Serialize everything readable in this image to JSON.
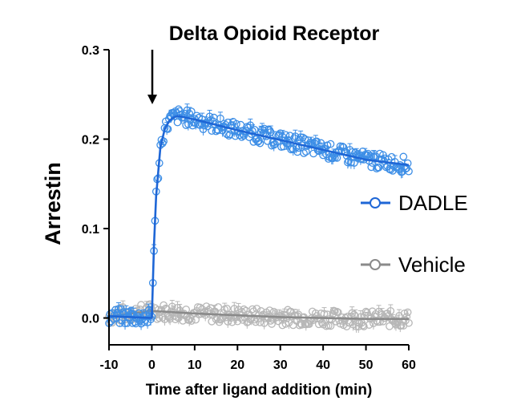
{
  "chart_data": {
    "type": "scatter",
    "title": "Delta Opioid Receptor",
    "xlabel": "Time after ligand addition (min)",
    "ylabel": "Arrestin",
    "xlim": [
      -10,
      60
    ],
    "ylim": [
      -0.03,
      0.3
    ],
    "x_ticks": [
      "-10",
      "0",
      "10",
      "20",
      "30",
      "40",
      "50",
      "60"
    ],
    "y_ticks": [
      "0.0",
      "0.1",
      "0.2",
      "0.3"
    ],
    "grid": false,
    "legend_position": "right",
    "annotation": {
      "type": "arrow",
      "x": 0,
      "label": ""
    },
    "series": [
      {
        "name": "DADLE",
        "color": "#3d8ee6",
        "fit_color": "#1e66d6",
        "pre_baseline": 0.0,
        "plateau": 0.226,
        "rise_tau_min": 1.1,
        "decay_slope_per_min": -0.0011,
        "fit": [
          [
            -10,
            0.002
          ],
          [
            0,
            0.0
          ],
          [
            0.5,
            0.081
          ],
          [
            1,
            0.136
          ],
          [
            2,
            0.191
          ],
          [
            3,
            0.211
          ],
          [
            4,
            0.22
          ],
          [
            5,
            0.224
          ],
          [
            6,
            0.226
          ],
          [
            10,
            0.222
          ],
          [
            20,
            0.21
          ],
          [
            30,
            0.199
          ],
          [
            40,
            0.188
          ],
          [
            50,
            0.177
          ],
          [
            60,
            0.171
          ]
        ],
        "error_bar_approx": 0.007
      },
      {
        "name": "Vehicle",
        "color": "#b7b7b7",
        "fit_color": "#8a8a8a",
        "pre_baseline": 0.0,
        "fit": [
          [
            -10,
            0.002
          ],
          [
            0,
            0.008
          ],
          [
            10,
            0.005
          ],
          [
            20,
            0.003
          ],
          [
            30,
            0.001
          ],
          [
            40,
            0.0
          ],
          [
            50,
            -0.001
          ],
          [
            60,
            -0.001
          ]
        ],
        "error_bar_approx": 0.007
      }
    ]
  }
}
